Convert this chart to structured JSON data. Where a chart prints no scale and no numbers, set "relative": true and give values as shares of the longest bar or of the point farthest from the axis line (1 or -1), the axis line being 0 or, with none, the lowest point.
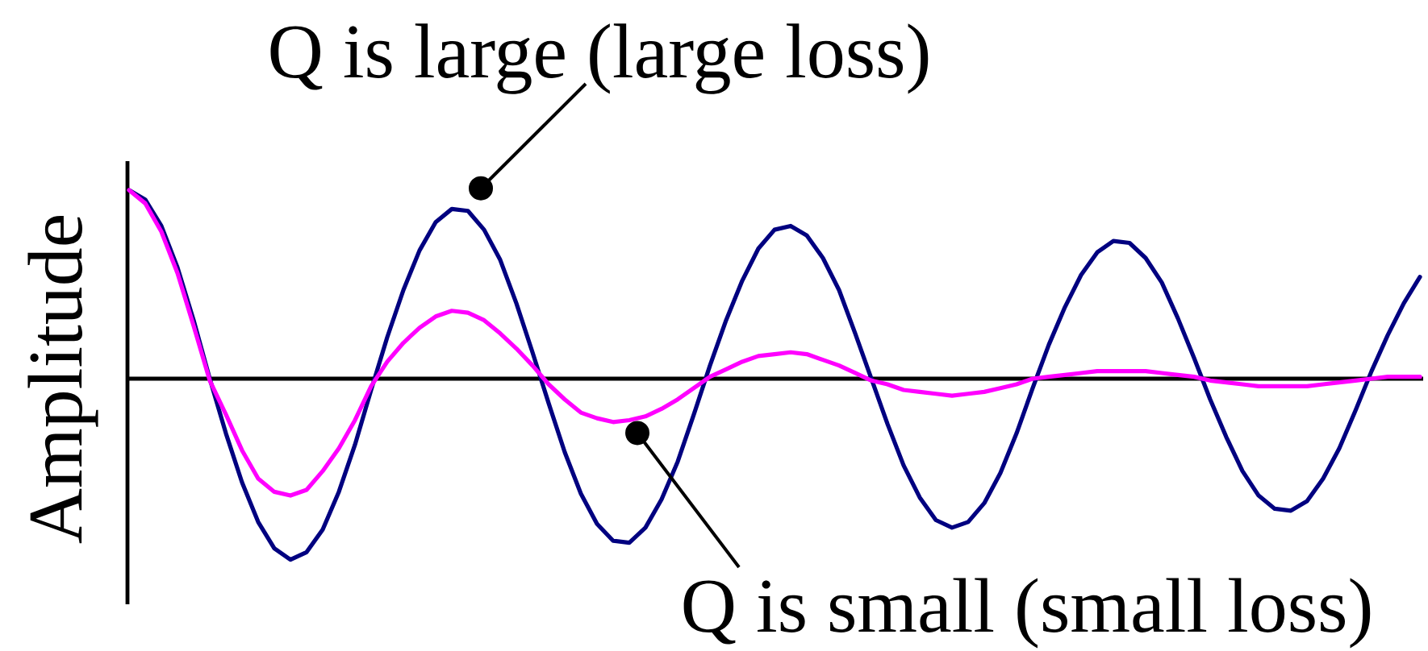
{
  "chart_data": {
    "type": "line",
    "ylabel": "Amplitude",
    "relative": true,
    "categories": [
      null,
      null,
      null,
      null,
      null,
      null,
      null,
      null,
      null,
      null,
      null,
      null,
      null,
      null,
      null,
      null,
      null,
      null,
      null,
      null,
      null,
      null,
      null,
      null,
      null,
      null,
      null,
      null,
      null,
      null,
      null,
      null,
      null,
      null,
      null,
      null,
      null,
      null,
      null,
      null,
      null,
      null,
      null,
      null,
      null,
      null,
      null,
      null,
      null,
      null,
      null,
      null,
      null,
      null,
      null,
      null,
      null,
      null,
      null,
      null,
      null,
      null,
      null,
      null,
      null,
      null,
      null,
      null,
      null,
      null,
      null,
      null,
      null,
      null,
      null,
      null,
      null,
      null,
      null,
      null,
      null
    ],
    "series": [
      {
        "name": "Q is large (large loss)",
        "color": "#000080",
        "values": [
          1.0,
          0.95,
          0.81,
          0.59,
          0.31,
          0,
          -0.29,
          -0.55,
          -0.76,
          -0.9,
          -0.96,
          -0.92,
          -0.8,
          -0.6,
          -0.35,
          -0.06,
          0.22,
          0.47,
          0.68,
          0.83,
          0.9,
          0.89,
          0.79,
          0.63,
          0.4,
          0.14,
          -0.13,
          -0.39,
          -0.61,
          -0.77,
          -0.86,
          -0.87,
          -0.79,
          -0.64,
          -0.44,
          -0.19,
          0.07,
          0.31,
          0.52,
          0.69,
          0.79,
          0.81,
          0.76,
          0.64,
          0.47,
          0.24,
          0,
          -0.24,
          -0.46,
          -0.63,
          -0.75,
          -0.79,
          -0.76,
          -0.66,
          -0.5,
          -0.29,
          -0.05,
          0.18,
          0.38,
          0.55,
          0.67,
          0.73,
          0.72,
          0.64,
          0.51,
          0.32,
          0.11,
          -0.11,
          -0.31,
          -0.49,
          -0.62,
          -0.69,
          -0.7,
          -0.65,
          -0.53,
          -0.37,
          -0.17,
          0.04,
          0.23,
          0.4,
          0.54
        ]
      },
      {
        "name": "Q is small (small loss)",
        "color": "#ff00ff",
        "values": [
          1.0,
          0.93,
          0.78,
          0.56,
          0.28,
          -0.01,
          -0.19,
          -0.38,
          -0.53,
          -0.6,
          -0.62,
          -0.59,
          -0.49,
          -0.37,
          -0.22,
          -0.04,
          0.09,
          0.19,
          0.27,
          0.33,
          0.36,
          0.35,
          0.31,
          0.24,
          0.16,
          0.07,
          -0.03,
          -0.11,
          -0.18,
          -0.21,
          -0.23,
          -0.22,
          -0.2,
          -0.16,
          -0.11,
          -0.05,
          0.01,
          0.05,
          0.09,
          0.12,
          0.13,
          0.14,
          0.13,
          0.1,
          0.07,
          0.03,
          -0.01,
          -0.03,
          -0.06,
          -0.07,
          -0.08,
          -0.09,
          -0.08,
          -0.07,
          -0.05,
          -0.03,
          0,
          0.01,
          0.02,
          0.03,
          0.04,
          0.04,
          0.04,
          0.04,
          0.03,
          0.02,
          0.01,
          -0.01,
          -0.02,
          -0.03,
          -0.04,
          -0.04,
          -0.04,
          -0.04,
          -0.03,
          -0.02,
          -0.01,
          0,
          0.01,
          0.01,
          0.01
        ]
      }
    ]
  }
}
